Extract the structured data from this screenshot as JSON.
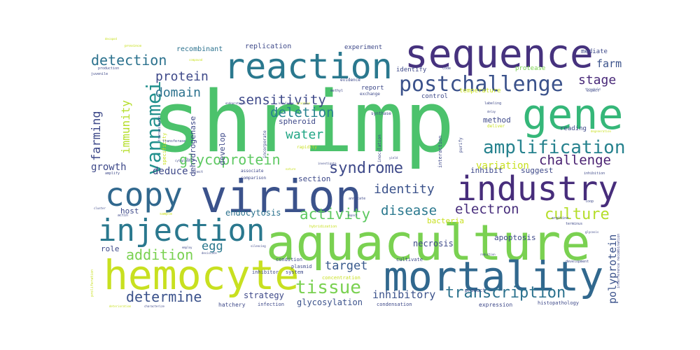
{
  "words": [
    {
      "text": "shrimp",
      "color": "#4cc26c",
      "size": 1.0,
      "vertical": false
    },
    {
      "text": "aquaculture",
      "color": "#7ad151",
      "size": 0.62,
      "vertical": false
    },
    {
      "text": "virion",
      "color": "#3b528b",
      "size": 0.58,
      "vertical": false
    },
    {
      "text": "sequence",
      "color": "#46327e",
      "size": 0.56,
      "vertical": false
    },
    {
      "text": "hemocyte",
      "color": "#c8e020",
      "size": 0.55,
      "vertical": false
    },
    {
      "text": "mortality",
      "color": "#31688e",
      "size": 0.55,
      "vertical": false
    },
    {
      "text": "gene",
      "color": "#35b779",
      "size": 0.52,
      "vertical": false
    },
    {
      "text": "reaction",
      "color": "#2a788e",
      "size": 0.5,
      "vertical": false
    },
    {
      "text": "industry",
      "color": "#472d7b",
      "size": 0.48,
      "vertical": false
    },
    {
      "text": "copy",
      "color": "#31688e",
      "size": 0.48,
      "vertical": false
    },
    {
      "text": "injection",
      "color": "#2a788e",
      "size": 0.42,
      "vertical": false
    },
    {
      "text": "postchallenge",
      "color": "#3b528b",
      "size": 0.3,
      "vertical": false
    },
    {
      "text": "amplification",
      "color": "#26828e",
      "size": 0.26,
      "vertical": false
    },
    {
      "text": "vannamei",
      "color": "#21908d",
      "size": 0.26,
      "vertical": true
    },
    {
      "text": "tissue",
      "color": "#7ad151",
      "size": 0.26,
      "vertical": false
    },
    {
      "text": "culture",
      "color": "#b5de2b",
      "size": 0.22,
      "vertical": false
    },
    {
      "text": "syndrome",
      "color": "#3e4989",
      "size": 0.22,
      "vertical": false
    },
    {
      "text": "transcription",
      "color": "#2c728e",
      "size": 0.22,
      "vertical": false
    },
    {
      "text": "glycoprotein",
      "color": "#5ec962",
      "size": 0.2,
      "vertical": false
    },
    {
      "text": "detection",
      "color": "#2c728e",
      "size": 0.2,
      "vertical": false
    },
    {
      "text": "activity",
      "color": "#5ec962",
      "size": 0.2,
      "vertical": false
    },
    {
      "text": "addition",
      "color": "#7ad151",
      "size": 0.2,
      "vertical": false
    },
    {
      "text": "determine",
      "color": "#3b528b",
      "size": 0.2,
      "vertical": false
    },
    {
      "text": "sensitivity",
      "color": "#3e4989",
      "size": 0.19,
      "vertical": false
    },
    {
      "text": "deletion",
      "color": "#26828e",
      "size": 0.19,
      "vertical": false
    },
    {
      "text": "challenge",
      "color": "#481f70",
      "size": 0.19,
      "vertical": false
    },
    {
      "text": "disease",
      "color": "#2a788e",
      "size": 0.19,
      "vertical": false
    },
    {
      "text": "electron",
      "color": "#472d7b",
      "size": 0.19,
      "vertical": false
    },
    {
      "text": "identity",
      "color": "#3b528b",
      "size": 0.18,
      "vertical": false
    },
    {
      "text": "protein",
      "color": "#3e4989",
      "size": 0.18,
      "vertical": false
    },
    {
      "text": "domain",
      "color": "#2c728e",
      "size": 0.18,
      "vertical": false
    },
    {
      "text": "stage",
      "color": "#482878",
      "size": 0.18,
      "vertical": false
    },
    {
      "text": "water",
      "color": "#21a685",
      "size": 0.18,
      "vertical": false
    },
    {
      "text": "target",
      "color": "#38598c",
      "size": 0.17,
      "vertical": false
    },
    {
      "text": "inhibitory",
      "color": "#3b528b",
      "size": 0.15,
      "vertical": false
    },
    {
      "text": "immunity",
      "color": "#b5de2b",
      "size": 0.17,
      "vertical": true
    },
    {
      "text": "farming",
      "color": "#3e4989",
      "size": 0.17,
      "vertical": true
    },
    {
      "text": "egg",
      "color": "#2a788e",
      "size": 0.17,
      "vertical": false
    },
    {
      "text": "polyprotein",
      "color": "#3b528b",
      "size": 0.15,
      "vertical": true
    },
    {
      "text": "farm",
      "color": "#3b528b",
      "size": 0.15,
      "vertical": false
    },
    {
      "text": "deduce",
      "color": "#3e4989",
      "size": 0.14,
      "vertical": false
    },
    {
      "text": "growth",
      "color": "#3e4989",
      "size": 0.14,
      "vertical": false
    },
    {
      "text": "variation",
      "color": "#c8e020",
      "size": 0.14,
      "vertical": false
    },
    {
      "text": "strategy",
      "color": "#3e4989",
      "size": 0.12,
      "vertical": false
    },
    {
      "text": "glycosylation",
      "color": "#3b528b",
      "size": 0.12,
      "vertical": false
    },
    {
      "text": "endocytosis",
      "color": "#2c728e",
      "size": 0.12,
      "vertical": false
    },
    {
      "text": "necrosis",
      "color": "#3e4989",
      "size": 0.12,
      "vertical": false
    },
    {
      "text": "apoptosis",
      "color": "#3e4989",
      "size": 0.11,
      "vertical": false
    },
    {
      "text": "bacteria",
      "color": "#c8e020",
      "size": 0.11,
      "vertical": false
    },
    {
      "text": "inhibit",
      "color": "#3e4989",
      "size": 0.11,
      "vertical": false
    },
    {
      "text": "suggest",
      "color": "#3e4989",
      "size": 0.11,
      "vertical": false
    },
    {
      "text": "method",
      "color": "#3e4989",
      "size": 0.11,
      "vertical": false
    },
    {
      "text": "spheroid",
      "color": "#3e4989",
      "size": 0.11,
      "vertical": false
    },
    {
      "text": "develop",
      "color": "#3e4989",
      "size": 0.11,
      "vertical": true
    },
    {
      "text": "dehydrogenase",
      "color": "#3e4989",
      "size": 0.11,
      "vertical": true
    },
    {
      "text": "role",
      "color": "#3e4989",
      "size": 0.11,
      "vertical": false
    },
    {
      "text": "host",
      "color": "#3e4989",
      "size": 0.11,
      "vertical": false
    },
    {
      "text": "section",
      "color": "#3e4989",
      "size": 0.11,
      "vertical": false
    },
    {
      "text": "recombinant",
      "color": "#2c728e",
      "size": 0.1,
      "vertical": false
    },
    {
      "text": "replication",
      "color": "#3e4989",
      "size": 0.1,
      "vertical": false
    },
    {
      "text": "experiment",
      "color": "#3e4989",
      "size": 0.09,
      "vertical": false
    },
    {
      "text": "identify",
      "color": "#3e4989",
      "size": 0.09,
      "vertical": false
    },
    {
      "text": "protease",
      "color": "#7ad151",
      "size": 0.09,
      "vertical": false
    },
    {
      "text": "mediate",
      "color": "#3e4989",
      "size": 0.09,
      "vertical": false
    },
    {
      "text": "report",
      "color": "#3e4989",
      "size": 0.09,
      "vertical": false
    },
    {
      "text": "control",
      "color": "#3e4989",
      "size": 0.09,
      "vertical": false
    },
    {
      "text": "temperature",
      "color": "#c8e020",
      "size": 0.09,
      "vertical": false
    },
    {
      "text": "reading",
      "color": "#3e4989",
      "size": 0.09,
      "vertical": false
    },
    {
      "text": "hatchery",
      "color": "#3e4989",
      "size": 0.08,
      "vertical": false
    },
    {
      "text": "histopathology",
      "color": "#3e4989",
      "size": 0.07,
      "vertical": false
    },
    {
      "text": "expression",
      "color": "#3e4989",
      "size": 0.08,
      "vertical": false
    },
    {
      "text": "condensation",
      "color": "#3e4989",
      "size": 0.07,
      "vertical": false
    },
    {
      "text": "infection",
      "color": "#3e4989",
      "size": 0.07,
      "vertical": false
    },
    {
      "text": "inhibitor",
      "color": "#3e4989",
      "size": 0.07,
      "vertical": false
    },
    {
      "text": "concentration",
      "color": "#c8e020",
      "size": 0.07,
      "vertical": false
    },
    {
      "text": "system",
      "color": "#3e4989",
      "size": 0.07,
      "vertical": false
    },
    {
      "text": "plasmid",
      "color": "#3e4989",
      "size": 0.07,
      "vertical": false
    },
    {
      "text": "condition",
      "color": "#3e4989",
      "size": 0.07,
      "vertical": false
    },
    {
      "text": "cultivate",
      "color": "#3e4989",
      "size": 0.07,
      "vertical": false
    },
    {
      "text": "product",
      "color": "#3e4989",
      "size": 0.07,
      "vertical": false
    },
    {
      "text": "interaction",
      "color": "#3e4989",
      "size": 0.07,
      "vertical": true
    },
    {
      "text": "inoculation",
      "color": "#3e4989",
      "size": 0.06,
      "vertical": true
    },
    {
      "text": "synthase",
      "color": "#3e4989",
      "size": 0.06,
      "vertical": false
    },
    {
      "text": "purify",
      "color": "#3e4989",
      "size": 0.06,
      "vertical": true
    },
    {
      "text": "deliver",
      "color": "#c8e020",
      "size": 0.06,
      "vertical": false
    },
    {
      "text": "labeling",
      "color": "#3e4989",
      "size": 0.05,
      "vertical": false
    },
    {
      "text": "specificity",
      "color": "#c8e020",
      "size": 0.07,
      "vertical": true
    },
    {
      "text": "incorporate",
      "color": "#3e4989",
      "size": 0.06,
      "vertical": true
    },
    {
      "text": "rapidity",
      "color": "#c8e020",
      "size": 0.06,
      "vertical": false
    },
    {
      "text": "comparison",
      "color": "#3e4989",
      "size": 0.06,
      "vertical": false
    },
    {
      "text": "associate",
      "color": "#3e4989",
      "size": 0.06,
      "vertical": false
    },
    {
      "text": "annotate",
      "color": "#3e4989",
      "size": 0.05,
      "vertical": false
    },
    {
      "text": "hybridization",
      "color": "#c8e020",
      "size": 0.05,
      "vertical": false
    },
    {
      "text": "evidence",
      "color": "#3e4989",
      "size": 0.06,
      "vertical": false
    },
    {
      "text": "exchange",
      "color": "#3e4989",
      "size": 0.06,
      "vertical": false
    },
    {
      "text": "code",
      "color": "#3e4989",
      "size": 0.05,
      "vertical": false
    },
    {
      "text": "expect",
      "color": "#3e4989",
      "size": 0.05,
      "vertical": false
    },
    {
      "text": "terminus",
      "color": "#3e4989",
      "size": 0.05,
      "vertical": false
    },
    {
      "text": "arginine",
      "color": "#3e4989",
      "size": 0.05,
      "vertical": false
    },
    {
      "text": "loop",
      "color": "#3e4989",
      "size": 0.05,
      "vertical": false
    },
    {
      "text": "inhibition",
      "color": "#3e4989",
      "size": 0.05,
      "vertical": false
    },
    {
      "text": "development",
      "color": "#3e4989",
      "size": 0.05,
      "vertical": false
    },
    {
      "text": "interference recombination",
      "color": "#3e4989",
      "size": 0.05,
      "vertical": true
    },
    {
      "text": "transferase",
      "color": "#3e4989",
      "size": 0.05,
      "vertical": false
    },
    {
      "text": "transmission",
      "color": "#3e4989",
      "size": 0.05,
      "vertical": true
    },
    {
      "text": "cytoplasm",
      "color": "#3e4989",
      "size": 0.04,
      "vertical": false
    },
    {
      "text": "endoprotease",
      "color": "#3e4989",
      "size": 0.04,
      "vertical": false
    },
    {
      "text": "knowledge",
      "color": "#3e4989",
      "size": 0.04,
      "vertical": false
    },
    {
      "text": "practice",
      "color": "#c8e020",
      "size": 0.04,
      "vertical": false
    },
    {
      "text": "production",
      "color": "#3e4989",
      "size": 0.05,
      "vertical": false
    },
    {
      "text": "juvenile",
      "color": "#3e4989",
      "size": 0.05,
      "vertical": false
    },
    {
      "text": "province",
      "color": "#c8e020",
      "size": 0.05,
      "vertical": false
    },
    {
      "text": "compound",
      "color": "#c8e020",
      "size": 0.04,
      "vertical": false
    },
    {
      "text": "decapod",
      "color": "#c8e020",
      "size": 0.04,
      "vertical": false
    },
    {
      "text": "methyl",
      "color": "#3e4989",
      "size": 0.05,
      "vertical": false
    },
    {
      "text": "proliferation",
      "color": "#c8e020",
      "size": 0.05,
      "vertical": true
    },
    {
      "text": "deterioration",
      "color": "#c8e020",
      "size": 0.04,
      "vertical": false
    },
    {
      "text": "characterize",
      "color": "#3e4989",
      "size": 0.04,
      "vertical": false
    },
    {
      "text": "investigate",
      "color": "#3e4989",
      "size": 0.04,
      "vertical": false
    },
    {
      "text": "yield",
      "color": "#3e4989",
      "size": 0.04,
      "vertical": false
    },
    {
      "text": "inject",
      "color": "#3e4989",
      "size": 0.05,
      "vertical": false
    },
    {
      "text": "amplify",
      "color": "#3e4989",
      "size": 0.05,
      "vertical": false
    },
    {
      "text": "sample",
      "color": "#c8e020",
      "size": 0.05,
      "vertical": false
    },
    {
      "text": "actin",
      "color": "#3e4989",
      "size": 0.05,
      "vertical": false
    },
    {
      "text": "cluster",
      "color": "#3e4989",
      "size": 0.04,
      "vertical": false
    },
    {
      "text": "employ",
      "color": "#3e4989",
      "size": 0.04,
      "vertical": false
    },
    {
      "text": "silencing",
      "color": "#3e4989",
      "size": 0.04,
      "vertical": false
    },
    {
      "text": "desiccate",
      "color": "#3e4989",
      "size": 0.04,
      "vertical": false
    },
    {
      "text": "impact",
      "color": "#3e4989",
      "size": 0.04,
      "vertical": false
    },
    {
      "text": "reduction",
      "color": "#3e4989",
      "size": 0.04,
      "vertical": false
    },
    {
      "text": "glycosis",
      "color": "#3e4989",
      "size": 0.04,
      "vertical": false
    },
    {
      "text": "nature",
      "color": "#c8e020",
      "size": 0.04,
      "vertical": false
    },
    {
      "text": "focus",
      "color": "#3e4989",
      "size": 0.04,
      "vertical": false
    },
    {
      "text": "delay",
      "color": "#3e4989",
      "size": 0.04,
      "vertical": false
    },
    {
      "text": "degeneration",
      "color": "#c8e020",
      "size": 0.04,
      "vertical": false
    },
    {
      "text": "threshold",
      "color": "#3e4989",
      "size": 0.04,
      "vertical": false
    }
  ]
}
